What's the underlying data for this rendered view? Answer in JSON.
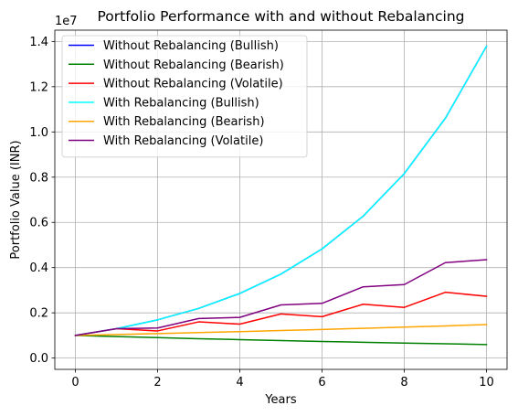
{
  "chart_data": {
    "type": "line",
    "title": "Portfolio Performance with and without Rebalancing",
    "xlabel": "Years",
    "ylabel": "Portfolio Value (INR)",
    "y_scale_note": "1e7",
    "xlim": [
      -0.5,
      10.5
    ],
    "ylim": [
      -0.05,
      1.45
    ],
    "x_ticks": [
      0,
      2,
      4,
      6,
      8,
      10
    ],
    "y_ticks": [
      0.0,
      0.2,
      0.4,
      0.6,
      0.8,
      1.0,
      1.2,
      1.4
    ],
    "y_tick_labels": [
      "0.0",
      "0.2",
      "0.4",
      "0.6",
      "0.8",
      "1.0",
      "1.2",
      "1.4"
    ],
    "grid": true,
    "legend_position": "top-left",
    "x": [
      0,
      1,
      2,
      3,
      4,
      5,
      6,
      7,
      8,
      9,
      10
    ],
    "series": [
      {
        "name": "Without Rebalancing (Bullish)",
        "color": "#0000ff",
        "values": [
          0.1,
          0.13,
          0.169,
          0.2197,
          0.2856,
          0.3713,
          0.4827,
          0.6275,
          0.8157,
          1.0604,
          1.3786
        ]
      },
      {
        "name": "Without Rebalancing (Bearish)",
        "color": "#008000",
        "values": [
          0.1,
          0.095,
          0.0903,
          0.0857,
          0.0815,
          0.0774,
          0.0735,
          0.0698,
          0.0663,
          0.063,
          0.0599
        ]
      },
      {
        "name": "Without Rebalancing (Volatile)",
        "color": "#ff0000",
        "values": [
          0.1,
          0.13,
          0.12,
          0.16,
          0.15,
          0.195,
          0.183,
          0.238,
          0.224,
          0.291,
          0.273
        ]
      },
      {
        "name": "With Rebalancing (Bullish)",
        "color": "#00ffff",
        "values": [
          0.1,
          0.13,
          0.169,
          0.2197,
          0.2856,
          0.3713,
          0.4827,
          0.6275,
          0.8157,
          1.0604,
          1.3786
        ]
      },
      {
        "name": "With Rebalancing (Bearish)",
        "color": "#ffa500",
        "values": [
          0.1,
          0.104,
          0.1082,
          0.1125,
          0.117,
          0.1217,
          0.1265,
          0.1316,
          0.1369,
          0.1423,
          0.148
        ]
      },
      {
        "name": "With Rebalancing (Volatile)",
        "color": "#800080",
        "values": [
          0.1,
          0.13,
          0.133,
          0.175,
          0.18,
          0.235,
          0.242,
          0.315,
          0.325,
          0.422,
          0.435
        ]
      }
    ]
  }
}
